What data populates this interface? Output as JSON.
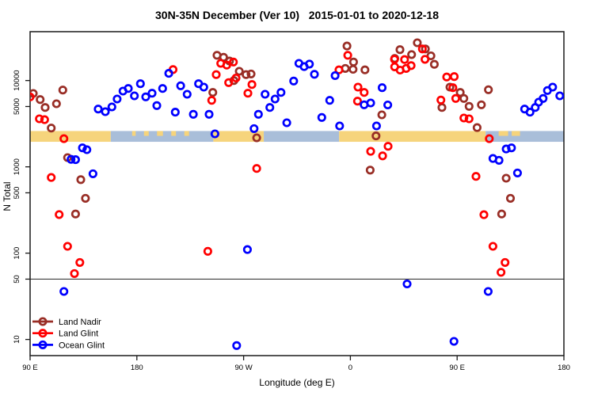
{
  "title": "30N-35N December (Ver 10)   2015-01-01 to 2020-12-18",
  "legend": {
    "items": [
      {
        "label": "Land Nadir",
        "color": "#992E26"
      },
      {
        "label": "Land Glint",
        "color": "#FF0000"
      },
      {
        "label": "Ocean Glint",
        "color": "#0000FF"
      }
    ]
  },
  "chart_data": {
    "type": "scatter",
    "title": "30N-35N December (Ver 10)   2015-01-01 to 2020-12-18",
    "xlabel": "Longitude (deg E)",
    "ylabel": "N Total",
    "x_scale": "linear",
    "y_scale": "log",
    "x_domain": [
      90,
      540
    ],
    "y_domain": [
      6.5,
      36800
    ],
    "x_ticks": [
      {
        "pos": 90,
        "label": "90 E"
      },
      {
        "pos": 180,
        "label": "180"
      },
      {
        "pos": 270,
        "label": "90 W"
      },
      {
        "pos": 360,
        "label": "0"
      },
      {
        "pos": 450,
        "label": "90 E"
      },
      {
        "pos": 540,
        "label": "180"
      }
    ],
    "y_ticks": [
      {
        "value": 10000,
        "label": "10000"
      },
      {
        "value": 5000,
        "label": "5000"
      },
      {
        "value": 1000,
        "label": "1000"
      },
      {
        "value": 500,
        "label": "500"
      },
      {
        "value": 100,
        "label": "100"
      },
      {
        "value": 50,
        "label": "50"
      },
      {
        "value": 10,
        "label": "10"
      }
    ],
    "reference_line_y": 50,
    "grid": false,
    "legend_position": "bottom-left",
    "map_strip": {
      "description": "world land/ocean band for 30N-35N drawn across plot",
      "y_top_value": 2600,
      "y_bottom_value": 1950,
      "land_color": "#F6D47C",
      "ocean_color": "#A9BED9",
      "segments": [
        {
          "type": "land",
          "from": 90,
          "to": 158
        },
        {
          "type": "ocean",
          "from": 158,
          "to": 244.5
        },
        {
          "type": "land",
          "from": 244.5,
          "to": 287
        },
        {
          "type": "ocean",
          "from": 287,
          "to": 350.5
        },
        {
          "type": "land",
          "from": 350.5,
          "to": 474
        },
        {
          "type": "ocean",
          "from": 474,
          "to": 540
        }
      ],
      "islands": [
        {
          "from": 176,
          "to": 179
        },
        {
          "from": 186,
          "to": 190
        },
        {
          "from": 197,
          "to": 202
        },
        {
          "from": 209,
          "to": 213
        },
        {
          "from": 220,
          "to": 224
        },
        {
          "from": 485,
          "to": 493
        },
        {
          "from": 496,
          "to": 503
        }
      ]
    },
    "series": [
      {
        "name": "Land Nadir",
        "color": "#992E26",
        "marker": "open-circle",
        "points": [
          [
            92.7,
            7080
          ],
          [
            98.5,
            6020
          ],
          [
            102.7,
            4870
          ],
          [
            112.2,
            5380
          ],
          [
            117.6,
            7760
          ],
          [
            107.8,
            2810
          ],
          [
            121.6,
            1280
          ],
          [
            132.7,
            711
          ],
          [
            136.7,
            432
          ],
          [
            128.3,
            284
          ],
          [
            244.0,
            7280
          ],
          [
            247.6,
            19600
          ],
          [
            253.1,
            18600
          ],
          [
            258.1,
            16800
          ],
          [
            261.8,
            10000
          ],
          [
            266.3,
            12800
          ],
          [
            272.1,
            11700
          ],
          [
            276.3,
            11900
          ],
          [
            281.0,
            2170
          ],
          [
            357.1,
            25100
          ],
          [
            355.7,
            13800
          ],
          [
            362.7,
            16400
          ],
          [
            362.3,
            13500
          ],
          [
            372.3,
            13300
          ],
          [
            376.7,
            916
          ],
          [
            381.6,
            2280
          ],
          [
            386.5,
            4000
          ],
          [
            397.4,
            18000
          ],
          [
            401.8,
            22800
          ],
          [
            411.6,
            20000
          ],
          [
            416.4,
            27400
          ],
          [
            423.2,
            23200
          ],
          [
            427.9,
            19300
          ],
          [
            430.8,
            15400
          ],
          [
            437.2,
            4870
          ],
          [
            443.9,
            8390
          ],
          [
            452.6,
            7280
          ],
          [
            455.7,
            6200
          ],
          [
            460.1,
            5020
          ],
          [
            470.4,
            5240
          ],
          [
            476.4,
            7820
          ],
          [
            466.8,
            2850
          ],
          [
            491.3,
            738
          ],
          [
            494.9,
            432
          ],
          [
            487.5,
            284
          ]
        ]
      },
      {
        "name": "Land Glint",
        "color": "#FF0000",
        "marker": "open-circle",
        "points": [
          [
            90.0,
            6470
          ],
          [
            97.8,
            3600
          ],
          [
            102.2,
            3520
          ],
          [
            118.5,
            2120
          ],
          [
            107.8,
            753
          ],
          [
            114.5,
            280
          ],
          [
            121.6,
            120
          ],
          [
            131.9,
            78
          ],
          [
            127.4,
            58
          ],
          [
            210.5,
            13400
          ],
          [
            250.7,
            15800
          ],
          [
            255.8,
            15100
          ],
          [
            261.4,
            16400
          ],
          [
            246.9,
            11700
          ],
          [
            257.4,
            9460
          ],
          [
            263.6,
            10700
          ],
          [
            277.0,
            9000
          ],
          [
            273.6,
            7130
          ],
          [
            243.1,
            5890
          ],
          [
            281.0,
            957
          ],
          [
            239.8,
            105
          ],
          [
            357.8,
            19600
          ],
          [
            350.4,
            13300
          ],
          [
            366.4,
            8390
          ],
          [
            371.6,
            7280
          ],
          [
            366.0,
            5770
          ],
          [
            391.8,
            1730
          ],
          [
            377.1,
            1510
          ],
          [
            387.2,
            1340
          ],
          [
            397.2,
            17600
          ],
          [
            397.3,
            14400
          ],
          [
            401.9,
            13200
          ],
          [
            407.0,
            13800
          ],
          [
            411.2,
            14900
          ],
          [
            405.7,
            17500
          ],
          [
            422.9,
            17600
          ],
          [
            420.7,
            23200
          ],
          [
            441.2,
            11000
          ],
          [
            436.3,
            5940
          ],
          [
            447.5,
            11100
          ],
          [
            446.4,
            8260
          ],
          [
            448.8,
            6200
          ],
          [
            455.7,
            3680
          ],
          [
            460.1,
            3600
          ],
          [
            477.1,
            2120
          ],
          [
            465.9,
            775
          ],
          [
            472.6,
            279
          ],
          [
            480.2,
            120
          ],
          [
            490.4,
            78
          ],
          [
            487.0,
            60
          ]
        ]
      },
      {
        "name": "Ocean Glint",
        "color": "#0000FF",
        "marker": "open-circle",
        "points": [
          [
            147.4,
            4670
          ],
          [
            153.4,
            4360
          ],
          [
            159.0,
            4940
          ],
          [
            163.4,
            6110
          ],
          [
            168.3,
            7550
          ],
          [
            172.8,
            8090
          ],
          [
            177.9,
            6650
          ],
          [
            183.0,
            9180
          ],
          [
            187.5,
            6470
          ],
          [
            192.8,
            7130
          ],
          [
            196.8,
            5130
          ],
          [
            201.7,
            8090
          ],
          [
            206.9,
            12100
          ],
          [
            134.1,
            1660
          ],
          [
            137.9,
            1580
          ],
          [
            124.5,
            1220
          ],
          [
            128.3,
            1210
          ],
          [
            143.0,
            832
          ],
          [
            118.5,
            36
          ],
          [
            216.9,
            8690
          ],
          [
            222.4,
            6930
          ],
          [
            232.0,
            9180
          ],
          [
            236.4,
            8390
          ],
          [
            240.9,
            4060
          ],
          [
            212.4,
            4300
          ],
          [
            227.6,
            4060
          ],
          [
            245.8,
            2410
          ],
          [
            278.8,
            2770
          ],
          [
            282.5,
            4060
          ],
          [
            288.1,
            6930
          ],
          [
            292.1,
            4870
          ],
          [
            296.5,
            6110
          ],
          [
            301.5,
            7280
          ],
          [
            306.4,
            3240
          ],
          [
            312.2,
            9870
          ],
          [
            316.6,
            15800
          ],
          [
            321.0,
            14500
          ],
          [
            325.5,
            15500
          ],
          [
            329.7,
            11800
          ],
          [
            347.1,
            11400
          ],
          [
            342.6,
            5890
          ],
          [
            335.9,
            3730
          ],
          [
            350.9,
            2980
          ],
          [
            382.0,
            2980
          ],
          [
            371.6,
            5240
          ],
          [
            377.1,
            5500
          ],
          [
            386.8,
            8260
          ],
          [
            391.5,
            5210
          ],
          [
            407.8,
            44
          ],
          [
            264.1,
            8.5
          ],
          [
            273.2,
            110
          ],
          [
            447.3,
            9.5
          ],
          [
            476.2,
            36
          ],
          [
            491.3,
            1610
          ],
          [
            495.8,
            1660
          ],
          [
            480.2,
            1250
          ],
          [
            485.3,
            1190
          ],
          [
            500.9,
            849
          ],
          [
            506.9,
            4670
          ],
          [
            511.4,
            4300
          ],
          [
            515.8,
            4870
          ],
          [
            518.7,
            5610
          ],
          [
            522.5,
            6200
          ],
          [
            526.1,
            7660
          ],
          [
            530.5,
            8390
          ],
          [
            536.5,
            6650
          ]
        ]
      }
    ]
  }
}
